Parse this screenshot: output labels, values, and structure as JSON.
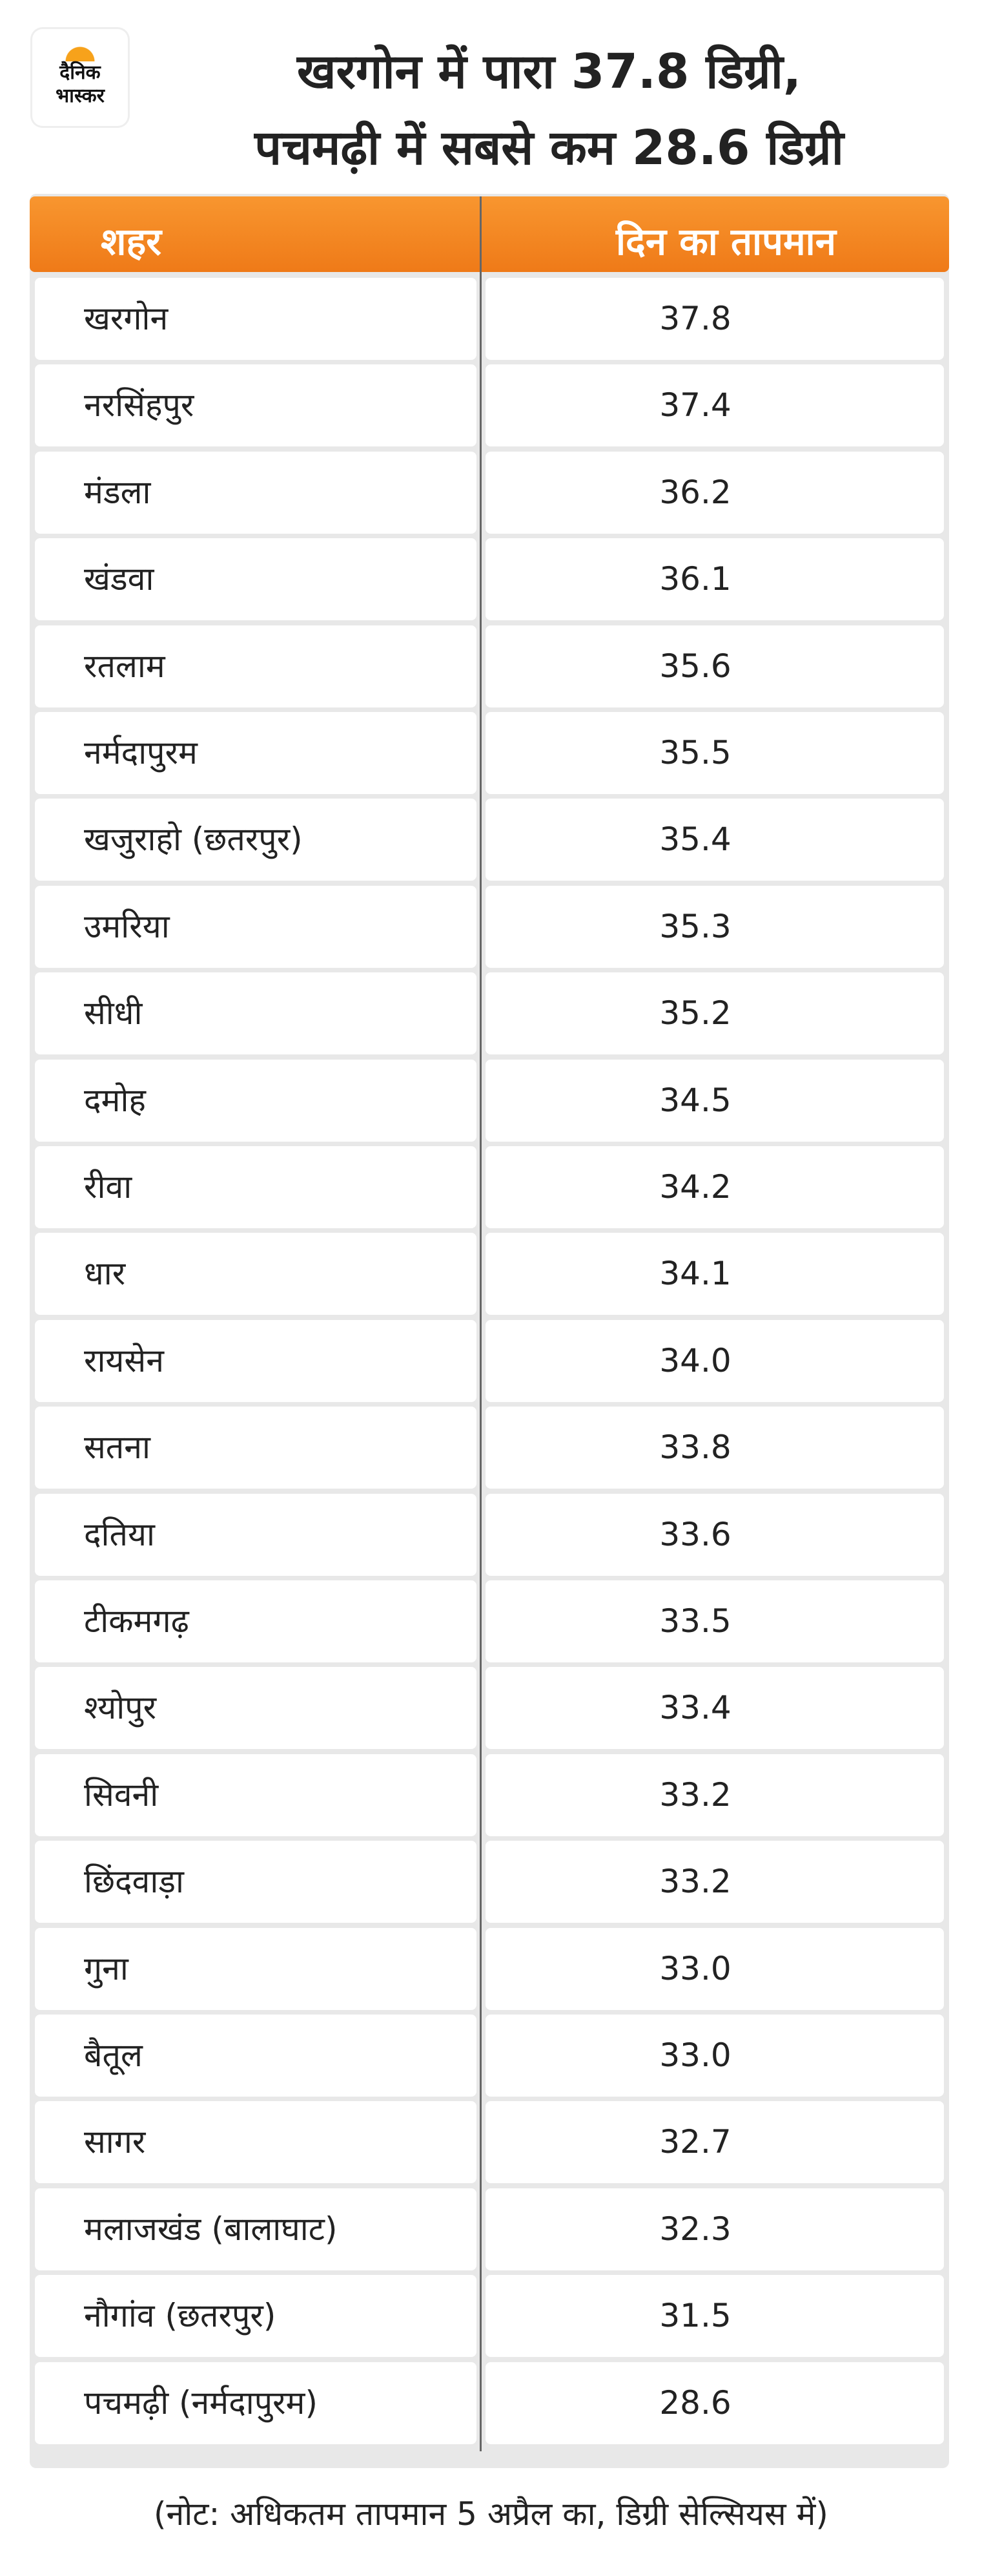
{
  "header": {
    "logo": [
      "दैनिक",
      "भास्कर"
    ],
    "title": [
      "खरगोन में पारा 37.8 डिग्री,",
      "पचमढ़ी में सबसे कम 28.6 डिग्री"
    ]
  },
  "table": {
    "columns": [
      "शहर",
      "दिन का तापमान"
    ],
    "rows": [
      [
        "खरगोन",
        "37.8"
      ],
      [
        "नरसिंहपुर",
        "37.4"
      ],
      [
        "मंडला",
        "36.2"
      ],
      [
        "खंडवा",
        "36.1"
      ],
      [
        "रतलाम",
        "35.6"
      ],
      [
        "नर्मदापुरम",
        "35.5"
      ],
      [
        "खजुराहो (छतरपुर)",
        "35.4"
      ],
      [
        "उमरिया",
        "35.3"
      ],
      [
        "सीधी",
        "35.2"
      ],
      [
        "दमोह",
        "34.5"
      ],
      [
        "रीवा",
        "34.2"
      ],
      [
        "धार",
        "34.1"
      ],
      [
        "रायसेन",
        "34.0"
      ],
      [
        "सतना",
        "33.8"
      ],
      [
        "दतिया",
        "33.6"
      ],
      [
        "टीकमगढ़",
        "33.5"
      ],
      [
        "श्योपुर",
        "33.4"
      ],
      [
        "सिवनी",
        "33.2"
      ],
      [
        "छिंदवाड़ा",
        "33.2"
      ],
      [
        "गुना",
        "33.0"
      ],
      [
        "बैतूल",
        "33.0"
      ],
      [
        "सागर",
        "32.7"
      ],
      [
        "मलाजखंड (बालाघाट)",
        "32.3"
      ],
      [
        "नौगांव (छतरपुर)",
        "31.5"
      ],
      [
        "पचमढ़ी (नर्मदापुरम)",
        "28.6"
      ]
    ]
  },
  "footnote": "(नोट: अधिकतम तापमान 5 अप्रैल का, डिग्री सेल्सियस में)"
}
